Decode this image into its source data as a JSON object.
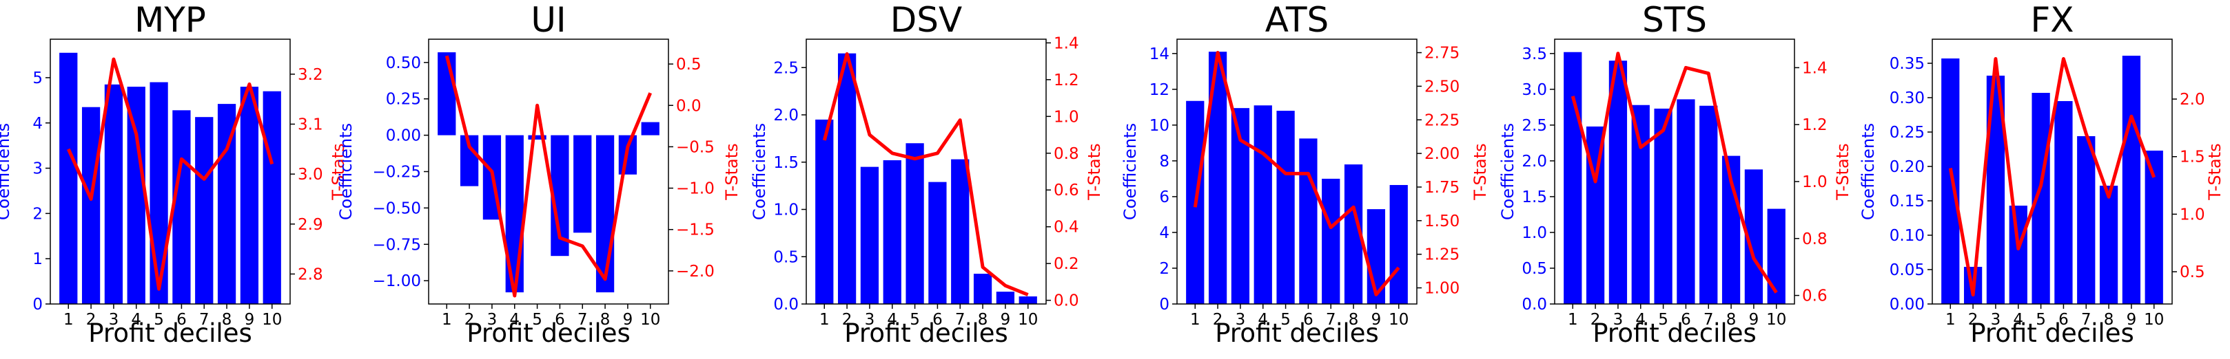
{
  "colors": {
    "bars": "#0000ff",
    "line": "#ff0000",
    "left_axis": "#0000ff",
    "right_axis": "#ff0000",
    "text": "#000000",
    "frame": "#000000",
    "background": "#ffffff"
  },
  "chart_data": [
    {
      "type": "bar+line",
      "title": "MYP",
      "xlabel": "Profit deciles",
      "ylabel_left": "Coefficients",
      "ylabel_right": "T-Stats",
      "categories": [
        "1",
        "2",
        "3",
        "4",
        "5",
        "6",
        "7",
        "8",
        "9",
        "10"
      ],
      "bar_values": [
        5.55,
        4.35,
        4.85,
        4.8,
        4.9,
        4.28,
        4.13,
        4.42,
        4.8,
        4.7
      ],
      "line_values": [
        3.05,
        2.95,
        3.23,
        3.08,
        2.77,
        3.03,
        2.99,
        3.05,
        3.18,
        3.02
      ],
      "left_ylim": [
        0,
        5.85
      ],
      "left_ticks": [
        "0",
        "1",
        "2",
        "3",
        "4",
        "5"
      ],
      "right_ylim": [
        2.74,
        3.27
      ],
      "right_ticks": [
        "2.8",
        "2.9",
        "3.0",
        "3.1",
        "3.2"
      ],
      "grid": false
    },
    {
      "type": "bar+line",
      "title": "UI",
      "xlabel": "Profit deciles",
      "ylabel_left": "Coefficients",
      "ylabel_right": "T-Stats",
      "categories": [
        "1",
        "2",
        "3",
        "4",
        "5",
        "6",
        "7",
        "8",
        "9",
        "10"
      ],
      "bar_values": [
        0.57,
        -0.35,
        -0.58,
        -1.08,
        -0.03,
        -0.83,
        -0.67,
        -1.08,
        -0.27,
        0.09
      ],
      "line_values": [
        0.6,
        -0.5,
        -0.8,
        -2.3,
        0.0,
        -1.6,
        -1.7,
        -2.1,
        -0.5,
        0.15
      ],
      "left_ylim": [
        -1.16,
        0.66
      ],
      "left_ticks": [
        "−1.00",
        "−0.75",
        "−0.50",
        "−0.25",
        "0.00",
        "0.25",
        "0.50"
      ],
      "right_ylim": [
        -2.4,
        0.8
      ],
      "right_ticks": [
        "−2.0",
        "−1.5",
        "−1.0",
        "−0.5",
        "0.0",
        "0.5"
      ],
      "grid": false
    },
    {
      "type": "bar+line",
      "title": "DSV",
      "xlabel": "Profit deciles",
      "ylabel_left": "Coefficients",
      "ylabel_right": "T-Stats",
      "categories": [
        "1",
        "2",
        "3",
        "4",
        "5",
        "6",
        "7",
        "8",
        "9",
        "10"
      ],
      "bar_values": [
        1.95,
        2.65,
        1.45,
        1.52,
        1.7,
        1.29,
        1.53,
        0.32,
        0.13,
        0.08
      ],
      "line_values": [
        0.87,
        1.34,
        0.9,
        0.8,
        0.77,
        0.8,
        0.98,
        0.18,
        0.08,
        0.03
      ],
      "left_ylim": [
        0,
        2.8
      ],
      "left_ticks": [
        "0.0",
        "0.5",
        "1.0",
        "1.5",
        "2.0",
        "2.5"
      ],
      "right_ylim": [
        -0.02,
        1.42
      ],
      "right_ticks": [
        "0.0",
        "0.2",
        "0.4",
        "0.6",
        "0.8",
        "1.0",
        "1.2",
        "1.4"
      ],
      "grid": false
    },
    {
      "type": "bar+line",
      "title": "ATS",
      "xlabel": "Profit deciles",
      "ylabel_left": "Coefficients",
      "ylabel_right": "T-Stats",
      "categories": [
        "1",
        "2",
        "3",
        "4",
        "5",
        "6",
        "7",
        "8",
        "9",
        "10"
      ],
      "bar_values": [
        11.35,
        14.1,
        10.95,
        11.1,
        10.8,
        9.25,
        7.0,
        7.8,
        5.3,
        6.65
      ],
      "line_values": [
        1.6,
        2.75,
        2.1,
        2.0,
        1.85,
        1.85,
        1.45,
        1.6,
        0.95,
        1.15
      ],
      "left_ylim": [
        0,
        14.8
      ],
      "left_ticks": [
        "0",
        "2",
        "4",
        "6",
        "8",
        "10",
        "12",
        "14"
      ],
      "right_ylim": [
        0.88,
        2.85
      ],
      "right_ticks": [
        "1.00",
        "1.25",
        "1.50",
        "1.75",
        "2.00",
        "2.25",
        "2.50",
        "2.75"
      ],
      "grid": false
    },
    {
      "type": "bar+line",
      "title": "STS",
      "xlabel": "Profit deciles",
      "ylabel_left": "Coefficients",
      "ylabel_right": "T-Stats",
      "categories": [
        "1",
        "2",
        "3",
        "4",
        "5",
        "6",
        "7",
        "8",
        "9",
        "10"
      ],
      "bar_values": [
        3.52,
        2.48,
        3.4,
        2.78,
        2.73,
        2.86,
        2.77,
        2.07,
        1.88,
        1.33
      ],
      "line_values": [
        1.3,
        1.0,
        1.45,
        1.12,
        1.18,
        1.4,
        1.38,
        1.0,
        0.73,
        0.61
      ],
      "left_ylim": [
        0,
        3.7
      ],
      "left_ticks": [
        "0.0",
        "0.5",
        "1.0",
        "1.5",
        "2.0",
        "2.5",
        "3.0",
        "3.5"
      ],
      "right_ylim": [
        0.57,
        1.5
      ],
      "right_ticks": [
        "0.6",
        "0.8",
        "1.0",
        "1.2",
        "1.4"
      ],
      "grid": false
    },
    {
      "type": "bar+line",
      "title": "FX",
      "xlabel": "Profit deciles",
      "ylabel_left": "Coefficients",
      "ylabel_right": "T-Stats",
      "categories": [
        "1",
        "2",
        "3",
        "4",
        "5",
        "6",
        "7",
        "8",
        "9",
        "10"
      ],
      "bar_values": [
        0.357,
        0.054,
        0.332,
        0.143,
        0.307,
        0.295,
        0.244,
        0.172,
        0.361,
        0.223
      ],
      "line_values": [
        1.4,
        0.3,
        2.35,
        0.7,
        1.25,
        2.35,
        1.7,
        1.15,
        1.85,
        1.32
      ],
      "left_ylim": [
        0,
        0.385
      ],
      "left_ticks": [
        "0.00",
        "0.05",
        "0.10",
        "0.15",
        "0.20",
        "0.25",
        "0.30",
        "0.35"
      ],
      "right_ylim": [
        0.22,
        2.52
      ],
      "right_ticks": [
        "0.5",
        "1.0",
        "1.5",
        "2.0"
      ],
      "grid": false
    }
  ]
}
